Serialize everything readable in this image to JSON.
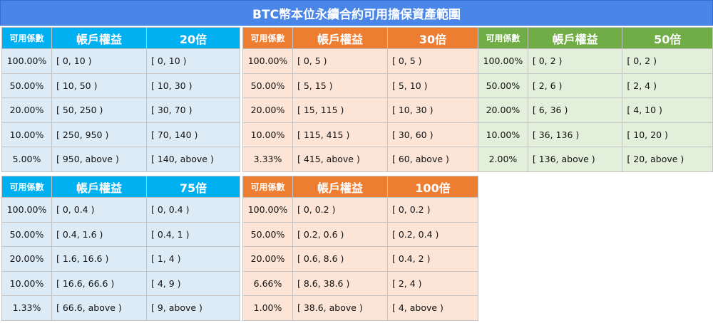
{
  "title": "BTC幣本位永續合約可用擔保資產範圍",
  "colors": {
    "blue": "#00b0f0",
    "orange": "#ed7d31",
    "green": "#70ad47",
    "title": "#4a86e8"
  },
  "tables": [
    {
      "col1": "可用係數",
      "col2": "帳戶權益",
      "col3": "20倍",
      "rows": [
        [
          "100.00%",
          "[ 0, 10 )",
          "[ 0, 10 )"
        ],
        [
          "50.00%",
          "[ 10, 50 )",
          "[ 10, 30 )"
        ],
        [
          "20.00%",
          "[ 50, 250 )",
          "[ 30, 70 )"
        ],
        [
          "10.00%",
          "[ 250, 950 )",
          "[ 70, 140 )"
        ],
        [
          "5.00%",
          "[ 950, above )",
          "[ 140, above )"
        ]
      ]
    },
    {
      "col1": "可用係數",
      "col2": "帳戶權益",
      "col3": "30倍",
      "rows": [
        [
          "100.00%",
          "[ 0, 5 )",
          "[ 0, 5 )"
        ],
        [
          "50.00%",
          "[ 5, 15 )",
          "[ 5, 10 )"
        ],
        [
          "20.00%",
          "[ 15, 115 )",
          "[ 10, 30 )"
        ],
        [
          "10.00%",
          "[ 115, 415 )",
          "[ 30, 60 )"
        ],
        [
          "3.33%",
          "[ 415, above )",
          "[ 60, above )"
        ]
      ]
    },
    {
      "col1": "可用係數",
      "col2": "帳戶權益",
      "col3": "50倍",
      "rows": [
        [
          "100.00%",
          "[ 0, 2 )",
          "[ 0, 2 )"
        ],
        [
          "50.00%",
          "[ 2, 6 )",
          "[ 2, 4 )"
        ],
        [
          "20.00%",
          "[ 6, 36 )",
          "[ 4, 10 )"
        ],
        [
          "10.00%",
          "[ 36, 136 )",
          "[ 10, 20 )"
        ],
        [
          "2.00%",
          "[ 136, above )",
          "[ 20, above )"
        ]
      ]
    },
    {
      "col1": "可用係數",
      "col2": "帳戶權益",
      "col3": "75倍",
      "rows": [
        [
          "100.00%",
          "[ 0, 0.4 )",
          "[ 0, 0.4 )"
        ],
        [
          "50.00%",
          "[ 0.4, 1.6 )",
          "[ 0.4, 1 )"
        ],
        [
          "20.00%",
          "[ 1.6, 16.6 )",
          "[ 1, 4 )"
        ],
        [
          "10.00%",
          "[ 16.6, 66.6 )",
          "[ 4, 9 )"
        ],
        [
          "1.33%",
          "[ 66.6, above )",
          "[ 9, above )"
        ]
      ]
    },
    {
      "col1": "可用係數",
      "col2": "帳戶權益",
      "col3": "100倍",
      "rows": [
        [
          "100.00%",
          "[ 0, 0.2 )",
          "[ 0, 0.2 )"
        ],
        [
          "50.00%",
          "[ 0.2, 0.6 )",
          "[ 0.2, 0.4 )"
        ],
        [
          "20.00%",
          "[ 0.6, 8.6 )",
          "[ 0.4, 2 )"
        ],
        [
          "6.66%",
          "[ 8.6, 38.6 )",
          "[ 2, 4 )"
        ],
        [
          "1.00%",
          "[ 38.6, above )",
          "[ 4, above )"
        ]
      ]
    }
  ]
}
